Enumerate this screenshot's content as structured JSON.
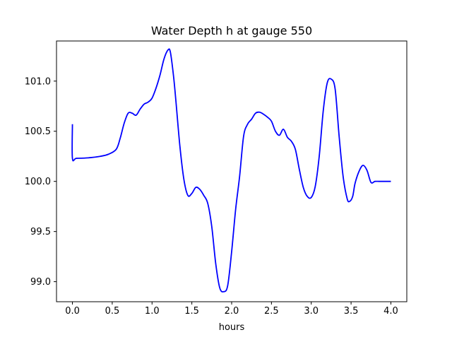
{
  "chart_data": {
    "type": "line",
    "title": "Water Depth h at gauge 550",
    "xlabel": "hours",
    "ylabel": "",
    "xlim": [
      -0.2,
      4.2
    ],
    "ylim": [
      98.8,
      101.4
    ],
    "xticks": [
      0.0,
      0.5,
      1.0,
      1.5,
      2.0,
      2.5,
      3.0,
      3.5,
      4.0
    ],
    "xtick_labels": [
      "0.0",
      "0.5",
      "1.0",
      "1.5",
      "2.0",
      "2.5",
      "3.0",
      "3.5",
      "4.0"
    ],
    "yticks": [
      99.0,
      99.5,
      100.0,
      100.5,
      101.0
    ],
    "ytick_labels": [
      "99.0",
      "99.5",
      "100.0",
      "100.5",
      "101.0"
    ],
    "grid": false,
    "series": [
      {
        "color": "#0000ff",
        "x": [
          0.0,
          0.0,
          0.05,
          0.2,
          0.35,
          0.45,
          0.55,
          0.6,
          0.65,
          0.7,
          0.75,
          0.8,
          0.85,
          0.9,
          0.95,
          1.0,
          1.05,
          1.1,
          1.15,
          1.2,
          1.23,
          1.27,
          1.3,
          1.35,
          1.4,
          1.45,
          1.5,
          1.55,
          1.6,
          1.65,
          1.7,
          1.75,
          1.8,
          1.85,
          1.9,
          1.95,
          2.0,
          2.05,
          2.1,
          2.15,
          2.2,
          2.25,
          2.3,
          2.35,
          2.4,
          2.45,
          2.5,
          2.55,
          2.6,
          2.65,
          2.7,
          2.75,
          2.8,
          2.85,
          2.9,
          2.95,
          3.0,
          3.05,
          3.1,
          3.15,
          3.2,
          3.25,
          3.3,
          3.35,
          3.4,
          3.45,
          3.48,
          3.52,
          3.55,
          3.6,
          3.65,
          3.7,
          3.75,
          3.8,
          3.85,
          3.9,
          3.95,
          4.0
        ],
        "y": [
          100.57,
          100.23,
          100.23,
          100.235,
          100.25,
          100.27,
          100.32,
          100.43,
          100.58,
          100.68,
          100.68,
          100.66,
          100.72,
          100.77,
          100.79,
          100.83,
          100.93,
          101.06,
          101.22,
          101.31,
          101.29,
          101.05,
          100.8,
          100.35,
          100.02,
          99.86,
          99.88,
          99.94,
          99.92,
          99.86,
          99.78,
          99.55,
          99.18,
          98.94,
          98.9,
          98.96,
          99.3,
          99.72,
          100.05,
          100.45,
          100.57,
          100.62,
          100.68,
          100.69,
          100.67,
          100.64,
          100.6,
          100.5,
          100.46,
          100.52,
          100.44,
          100.4,
          100.32,
          100.12,
          99.94,
          99.85,
          99.84,
          99.95,
          100.25,
          100.7,
          100.98,
          101.02,
          100.92,
          100.45,
          100.05,
          99.83,
          99.8,
          99.85,
          99.98,
          100.1,
          100.16,
          100.11,
          99.99,
          100.0,
          100.0,
          100.0,
          100.0,
          100.0
        ]
      }
    ]
  }
}
